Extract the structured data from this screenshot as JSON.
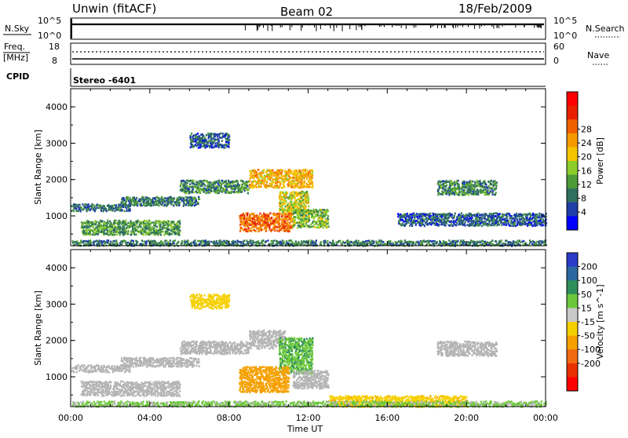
{
  "header": {
    "station": "Unwin (fitACF)",
    "beam": "Beam 02",
    "date": "18/Feb/2009"
  },
  "strip1": {
    "left_label": "N.Sky",
    "left_ticks": [
      "10^5",
      "10^0"
    ],
    "right_ticks": [
      "10^5",
      "10^0"
    ],
    "right_label": "N.Search"
  },
  "strip2": {
    "left_label_1": "Freq.",
    "left_label_2": "[MHz]",
    "left_ticks": [
      "18",
      "8"
    ],
    "right_ticks": [
      "60",
      "0"
    ],
    "right_label": "Nave"
  },
  "cpid": {
    "label": "CPID",
    "value": "Stereo  -6401"
  },
  "x_axis": {
    "label": "Time UT",
    "ticks": [
      "00:00",
      "04:00",
      "08:00",
      "12:00",
      "16:00",
      "20:00",
      "00:00"
    ]
  },
  "colors": {
    "power": [
      "#0000ff",
      "#1f3ea8",
      "#2f6f5f",
      "#4c9a3a",
      "#8ccd2c",
      "#f5c400",
      "#f59a00",
      "#f06000",
      "#e82000",
      "#ff0000"
    ],
    "velocity": [
      "#2a3cc8",
      "#2c68a0",
      "#2f8f5a",
      "#6cc83a",
      "#c8c8c8",
      "#f5d000",
      "#f5a000",
      "#f06a10",
      "#e83000",
      "#ff0000"
    ],
    "ground_scatter": "#b4b4b4"
  },
  "chart_data": [
    {
      "type": "heatmap",
      "title": "",
      "xlabel": "Time UT",
      "ylabel": "Slant Range [km]",
      "x_ticks": [
        "00:00",
        "04:00",
        "08:00",
        "12:00",
        "16:00",
        "20:00",
        "00:00"
      ],
      "y_ticks": [
        "1000",
        "2000",
        "3000",
        "4000"
      ],
      "xlim_hours": [
        0,
        24
      ],
      "ylim_km": [
        180,
        4500
      ],
      "colorbar": {
        "label": "Power [dB]",
        "ticks": [
          "4",
          "8",
          "12",
          "16",
          "20",
          "24",
          "28"
        ],
        "range": [
          0,
          30
        ]
      },
      "scatter_regions": [
        {
          "t": [
            0.0,
            3.0
          ],
          "km": [
            1150,
            1350
          ],
          "dB": 7
        },
        {
          "t": [
            2.5,
            6.5
          ],
          "km": [
            1300,
            1550
          ],
          "dB": 8
        },
        {
          "t": [
            5.5,
            9.0
          ],
          "km": [
            1650,
            2000
          ],
          "dB": 9
        },
        {
          "t": [
            9.0,
            12.2
          ],
          "km": [
            1800,
            2300
          ],
          "dB": 18
        },
        {
          "t": [
            10.5,
            12.0
          ],
          "km": [
            1100,
            1700
          ],
          "dB": 15
        },
        {
          "t": [
            8.5,
            11.2
          ],
          "km": [
            600,
            1100
          ],
          "dB": 22
        },
        {
          "t": [
            11.2,
            13.0
          ],
          "km": [
            700,
            1200
          ],
          "dB": 12
        },
        {
          "t": [
            0.5,
            5.5
          ],
          "km": [
            500,
            900
          ],
          "dB": 10
        },
        {
          "t": [
            6.0,
            8.0
          ],
          "km": [
            2900,
            3300
          ],
          "dB": 6
        },
        {
          "t": [
            18.5,
            21.5
          ],
          "km": [
            1600,
            2000
          ],
          "dB": 9
        },
        {
          "t": [
            16.5,
            24.0
          ],
          "km": [
            750,
            1100
          ],
          "dB": 6
        },
        {
          "t": [
            0.0,
            24.0
          ],
          "km": [
            200,
            350
          ],
          "dB": 8
        }
      ]
    },
    {
      "type": "heatmap",
      "title": "",
      "xlabel": "Time UT",
      "ylabel": "Slant Range [km]",
      "x_ticks": [
        "00:00",
        "04:00",
        "08:00",
        "12:00",
        "16:00",
        "20:00",
        "00:00"
      ],
      "y_ticks": [
        "1000",
        "2000",
        "3000",
        "4000"
      ],
      "xlim_hours": [
        0,
        24
      ],
      "ylim_km": [
        180,
        4500
      ],
      "colorbar": {
        "label": "Velocity [m s^-1]",
        "ticks": [
          "200",
          "100",
          "50",
          "15",
          "-15",
          "-50",
          "-100",
          "-200"
        ],
        "range": [
          -250,
          250
        ]
      },
      "scatter_regions": [
        {
          "t": [
            0.0,
            3.0
          ],
          "km": [
            1150,
            1350
          ],
          "v": 0
        },
        {
          "t": [
            2.5,
            6.5
          ],
          "km": [
            1300,
            1550
          ],
          "v": 0
        },
        {
          "t": [
            5.5,
            9.0
          ],
          "km": [
            1650,
            2000
          ],
          "v": 0
        },
        {
          "t": [
            9.0,
            10.8
          ],
          "km": [
            1800,
            2300
          ],
          "v": 0
        },
        {
          "t": [
            10.5,
            12.2
          ],
          "km": [
            1100,
            2100
          ],
          "v": 45
        },
        {
          "t": [
            8.5,
            11.0
          ],
          "km": [
            600,
            1300
          ],
          "v": -75
        },
        {
          "t": [
            11.2,
            13.0
          ],
          "km": [
            700,
            1200
          ],
          "v": 0
        },
        {
          "t": [
            0.5,
            5.5
          ],
          "km": [
            500,
            900
          ],
          "v": 0
        },
        {
          "t": [
            6.0,
            8.0
          ],
          "km": [
            2900,
            3300
          ],
          "v": -30
        },
        {
          "t": [
            18.5,
            21.5
          ],
          "km": [
            1600,
            2000
          ],
          "v": 0
        },
        {
          "t": [
            13.0,
            20.0
          ],
          "km": [
            200,
            500
          ],
          "v": -40
        },
        {
          "t": [
            0.0,
            24.0
          ],
          "km": [
            200,
            350
          ],
          "v": 20
        }
      ]
    }
  ]
}
